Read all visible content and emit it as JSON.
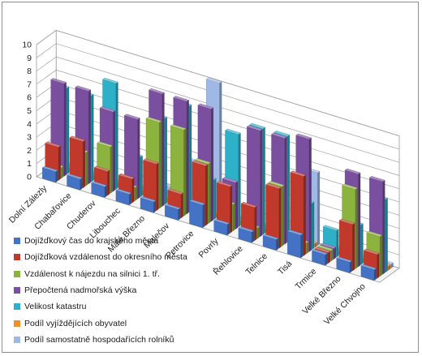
{
  "chart_data": {
    "type": "bar",
    "title": "",
    "xlabel": "",
    "ylabel": "",
    "ylim": [
      0,
      10
    ],
    "yticks": [
      "0",
      "1",
      "2",
      "3",
      "4",
      "5",
      "6",
      "7",
      "8",
      "9",
      "10"
    ],
    "grid": true,
    "legend_position": "bottom-left",
    "categories": [
      "Dolní Zálezly",
      "Chabařovice",
      "Chuderov",
      "Libouchec",
      "Malé Březno",
      "Malečov",
      "Petrovice",
      "Povrly",
      "Řehlovice",
      "Telnice",
      "Tisá",
      "Trmice",
      "Velké Březno",
      "Velké Chvojno"
    ],
    "series": [
      {
        "name": "Dojížďkový čas do krajského města",
        "color": "#4472c4",
        "values": [
          0.8,
          0.8,
          0.8,
          0.8,
          0.8,
          0.8,
          1.7,
          0.8,
          0.8,
          0.8,
          1.7,
          0.8,
          0.8,
          0.8
        ]
      },
      {
        "name": "Dojížďková vzdálenost do okresního města",
        "color": "#c0392b",
        "values": [
          2.5,
          3.5,
          1.8,
          1.8,
          3.5,
          1.8,
          4.5,
          3.5,
          2.5,
          4.5,
          6.0,
          0.8,
          3.5,
          1.8
        ]
      },
      {
        "name": "Vzdálenost k nájezdu na silnici 1. tř.",
        "color": "#8db33f",
        "values": [
          0.8,
          2.5,
          3.5,
          1.0,
          6.5,
          6.5,
          4.5,
          2.0,
          0.8,
          4.5,
          0.8,
          0.8,
          6.0,
          3.0
        ]
      },
      {
        "name": "Přepočtená nadmořská výška",
        "color": "#7b4fa0",
        "values": [
          7.0,
          7.0,
          6.0,
          6.0,
          8.5,
          8.5,
          8.5,
          3.5,
          8.0,
          8.0,
          8.5,
          0.8,
          7.0,
          7.0
        ]
      },
      {
        "name": "Velikost katastru",
        "color": "#2eb0c8",
        "values": [
          6.5,
          6.5,
          8.0,
          3.0,
          6.5,
          8.0,
          3.0,
          7.0,
          8.0,
          8.0,
          3.5,
          2.0,
          3.0,
          5.5
        ]
      },
      {
        "name": "Podíl vyjíždějících obyvatel",
        "color": "#f0902d",
        "values": [
          0.3,
          0.3,
          0.3,
          0.3,
          0.3,
          0.5,
          0.3,
          0.3,
          0.3,
          0.3,
          0.3,
          0.3,
          0.3,
          0.3
        ]
      },
      {
        "name": "Podíl samostatně hospodařících rolníků",
        "color": "#9fb8e6",
        "values": [
          0.3,
          0.3,
          0.3,
          0.3,
          1.0,
          3.5,
          10.0,
          0.3,
          0.3,
          0.3,
          5.5,
          0.3,
          0.3,
          0.3
        ]
      }
    ]
  }
}
